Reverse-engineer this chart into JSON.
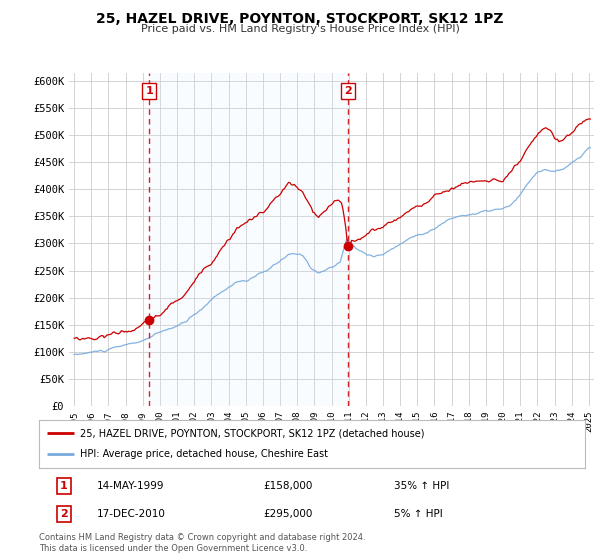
{
  "title": "25, HAZEL DRIVE, POYNTON, STOCKPORT, SK12 1PZ",
  "subtitle": "Price paid vs. HM Land Registry's House Price Index (HPI)",
  "ylabel_ticks": [
    "£0",
    "£50K",
    "£100K",
    "£150K",
    "£200K",
    "£250K",
    "£300K",
    "£350K",
    "£400K",
    "£450K",
    "£500K",
    "£550K",
    "£600K"
  ],
  "ytick_vals": [
    0,
    50000,
    100000,
    150000,
    200000,
    250000,
    300000,
    350000,
    400000,
    450000,
    500000,
    550000,
    600000
  ],
  "ylim": [
    0,
    615000
  ],
  "xmin": 1994.7,
  "xmax": 2025.3,
  "marker1_x": 1999.37,
  "marker1_y": 158000,
  "marker2_x": 2010.96,
  "marker2_y": 295000,
  "legend_line1": "25, HAZEL DRIVE, POYNTON, STOCKPORT, SK12 1PZ (detached house)",
  "legend_line2": "HPI: Average price, detached house, Cheshire East",
  "annotation1_date": "14-MAY-1999",
  "annotation1_price": "£158,000",
  "annotation1_hpi": "35% ↑ HPI",
  "annotation2_date": "17-DEC-2010",
  "annotation2_price": "£295,000",
  "annotation2_hpi": "5% ↑ HPI",
  "footer": "Contains HM Land Registry data © Crown copyright and database right 2024.\nThis data is licensed under the Open Government Licence v3.0.",
  "line_color_red": "#cc0000",
  "line_color_blue": "#77aadd",
  "shade_color": "#ddeeff",
  "bg_color": "#ffffff",
  "grid_color": "#cccccc",
  "marker_box_color": "#cc0000"
}
